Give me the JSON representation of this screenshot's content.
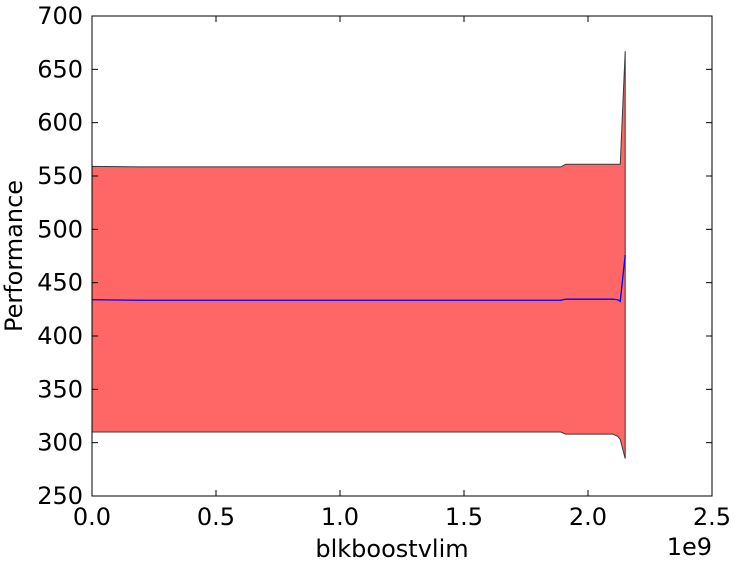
{
  "chart_data": {
    "type": "area",
    "title": "",
    "xlabel": "blkboostvlim",
    "ylabel": "Performance",
    "x_offset_label": "1e9",
    "xlim": [
      0,
      2.5
    ],
    "ylim": [
      250,
      700
    ],
    "x_ticks": [
      0,
      0.5,
      1,
      1.5,
      2,
      2.5
    ],
    "x_tick_labels": [
      "0.0",
      "0.5",
      "1.0",
      "1.5",
      "2.0",
      "2.5"
    ],
    "y_ticks": [
      250,
      300,
      350,
      400,
      450,
      500,
      550,
      600,
      650,
      700
    ],
    "y_tick_labels": [
      "250",
      "300",
      "350",
      "400",
      "450",
      "500",
      "550",
      "600",
      "650",
      "700"
    ],
    "grid": false,
    "colors": {
      "band_fill": "#ff6666",
      "band_edge": "#3a3a3a",
      "mean_line": "#0000ff",
      "axes": "#000000"
    },
    "band": {
      "x": [
        0.0,
        0.2,
        1.89,
        1.91,
        2.1,
        2.12,
        2.13,
        2.15
      ],
      "upper": [
        559,
        558.5,
        558.5,
        561,
        561,
        561,
        561,
        667
      ],
      "lower": [
        310,
        310,
        310,
        308,
        308,
        306,
        303,
        285
      ]
    },
    "series": [
      {
        "x": [
          0.0,
          0.2,
          1.89,
          1.91,
          2.1,
          2.12,
          2.13,
          2.15
        ],
        "values": [
          434,
          433.5,
          433.5,
          434.5,
          434.5,
          434,
          432.5,
          476
        ]
      }
    ]
  }
}
